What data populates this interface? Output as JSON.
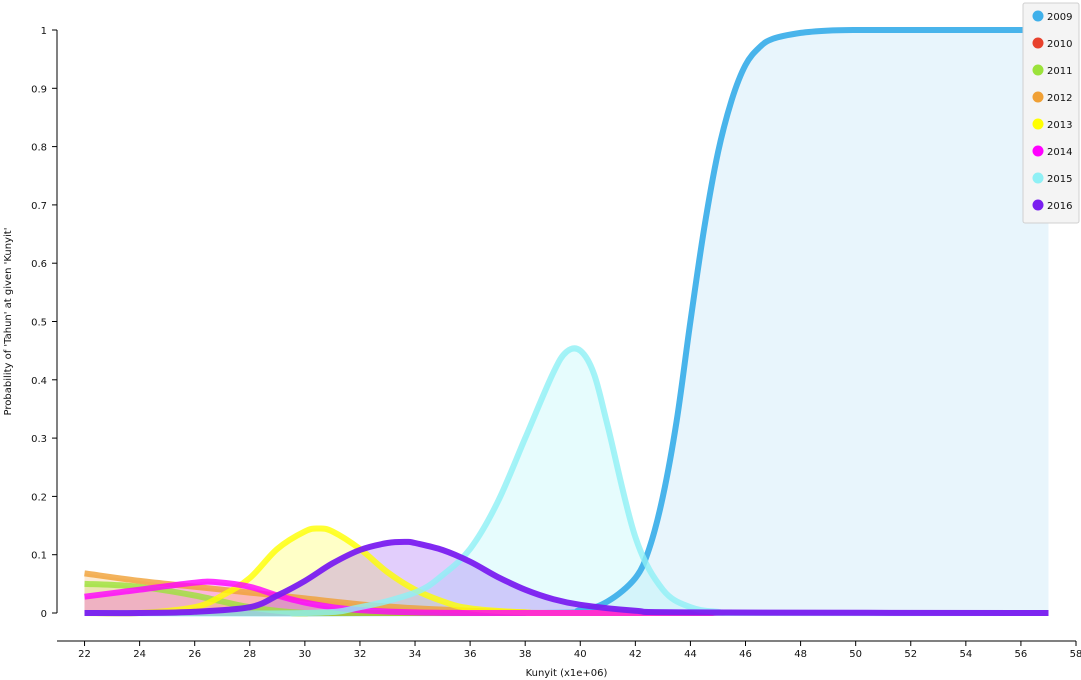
{
  "chart_data": {
    "type": "area",
    "title": "",
    "xlabel": "Kunyit (x1e+06)",
    "ylabel": "Probability of 'Tahun' at given 'Kunyit'",
    "xlim": [
      21,
      58
    ],
    "ylim": [
      0,
      1
    ],
    "x_ticks": [
      "22",
      "24",
      "26",
      "28",
      "30",
      "32",
      "34",
      "36",
      "38",
      "40",
      "42",
      "44",
      "46",
      "48",
      "50",
      "52",
      "54",
      "56",
      "58"
    ],
    "y_ticks": [
      "0",
      "0.1",
      "0.2",
      "0.3",
      "0.4",
      "0.5",
      "0.6",
      "0.7",
      "0.8",
      "0.9",
      "1"
    ],
    "legend_position": "top-right",
    "series": [
      {
        "name": "2009",
        "color": "#3fb0ea",
        "x": [
          22,
          38,
          40,
          41,
          42,
          42.5,
          43,
          43.5,
          44,
          44.5,
          45,
          45.5,
          46,
          46.5,
          47,
          48,
          49,
          50,
          52,
          57
        ],
        "values": [
          0,
          0,
          0.005,
          0.02,
          0.06,
          0.11,
          0.2,
          0.33,
          0.5,
          0.66,
          0.79,
          0.88,
          0.94,
          0.97,
          0.985,
          0.995,
          0.999,
          1,
          1,
          1
        ]
      },
      {
        "name": "2010",
        "color": "#e8412c",
        "x": [
          22,
          30,
          40,
          57
        ],
        "values": [
          0,
          0,
          0,
          0
        ]
      },
      {
        "name": "2011",
        "color": "#9be23a",
        "x": [
          22,
          24,
          26,
          28,
          30,
          32,
          57
        ],
        "values": [
          0.05,
          0.045,
          0.03,
          0.01,
          0,
          0,
          0
        ]
      },
      {
        "name": "2012",
        "color": "#f0a035",
        "x": [
          22,
          24,
          26,
          28,
          30,
          32,
          34,
          36,
          38,
          40,
          57
        ],
        "values": [
          0.068,
          0.055,
          0.045,
          0.035,
          0.025,
          0.015,
          0.008,
          0.004,
          0.001,
          0,
          0
        ]
      },
      {
        "name": "2013",
        "color": "#ffff00",
        "x": [
          22,
          24,
          26,
          27,
          28,
          29,
          30,
          30.5,
          31,
          32,
          33,
          34,
          35,
          36,
          38,
          40,
          57
        ],
        "values": [
          0,
          0,
          0.01,
          0.03,
          0.06,
          0.11,
          0.14,
          0.145,
          0.14,
          0.11,
          0.07,
          0.04,
          0.02,
          0.008,
          0.001,
          0,
          0
        ]
      },
      {
        "name": "2014",
        "color": "#ff00ff",
        "x": [
          22,
          24,
          26,
          26.8,
          28,
          29,
          30,
          31,
          32,
          34,
          36,
          40,
          57
        ],
        "values": [
          0.028,
          0.04,
          0.052,
          0.053,
          0.045,
          0.03,
          0.018,
          0.01,
          0.005,
          0.001,
          0,
          0,
          0
        ]
      },
      {
        "name": "2015",
        "color": "#8ff0f5",
        "x": [
          22,
          30,
          32,
          34,
          35,
          36,
          37,
          38,
          39,
          39.5,
          40,
          40.5,
          41,
          42,
          43,
          44,
          45,
          46,
          57
        ],
        "values": [
          0,
          0,
          0.01,
          0.035,
          0.065,
          0.11,
          0.19,
          0.3,
          0.41,
          0.448,
          0.45,
          0.41,
          0.32,
          0.13,
          0.04,
          0.01,
          0.002,
          0,
          0
        ]
      },
      {
        "name": "2016",
        "color": "#7a1ef0",
        "x": [
          22,
          24,
          26,
          28,
          29,
          30,
          31,
          32,
          33,
          33.7,
          34,
          35,
          36,
          37,
          38,
          39,
          40,
          42,
          44,
          57
        ],
        "values": [
          0,
          0,
          0.002,
          0.01,
          0.03,
          0.055,
          0.085,
          0.108,
          0.12,
          0.122,
          0.12,
          0.108,
          0.088,
          0.062,
          0.04,
          0.024,
          0.014,
          0.004,
          0.001,
          0
        ]
      }
    ]
  }
}
